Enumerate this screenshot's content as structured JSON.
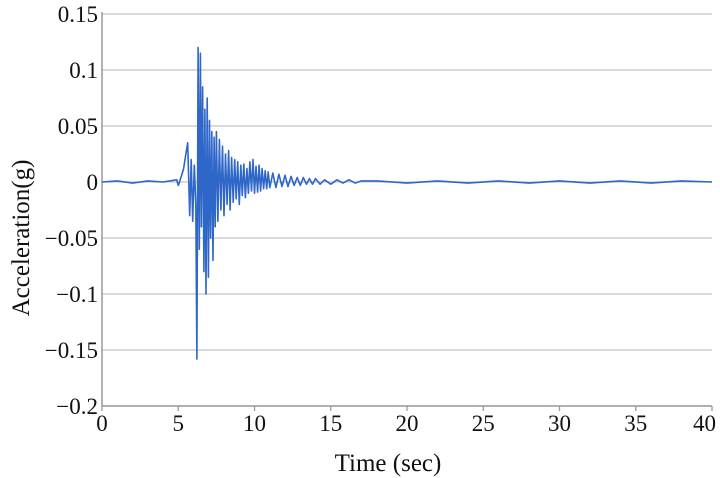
{
  "chart_data": {
    "type": "line",
    "title": "",
    "xlabel": "Time (sec)",
    "ylabel": "Acceleration(g)",
    "xlim": [
      0,
      40
    ],
    "ylim": [
      -0.2,
      0.15
    ],
    "x_ticks": [
      {
        "value": 0,
        "label": "0"
      },
      {
        "value": 5,
        "label": "5"
      },
      {
        "value": 10,
        "label": "10"
      },
      {
        "value": 15,
        "label": "15"
      },
      {
        "value": 20,
        "label": "20"
      },
      {
        "value": 25,
        "label": "25"
      },
      {
        "value": 30,
        "label": "30"
      },
      {
        "value": 35,
        "label": "35"
      },
      {
        "value": 40,
        "label": "40"
      }
    ],
    "y_ticks": [
      {
        "value": 0.15,
        "label": "0.15"
      },
      {
        "value": 0.1,
        "label": "0.1"
      },
      {
        "value": 0.05,
        "label": "0.05"
      },
      {
        "value": 0,
        "label": "0"
      },
      {
        "value": -0.05,
        "label": "−0.05"
      },
      {
        "value": -0.1,
        "label": "−0.1"
      },
      {
        "value": -0.15,
        "label": "−0.15"
      },
      {
        "value": -0.2,
        "label": "−0.2"
      }
    ],
    "grid": {
      "horizontal": true,
      "vertical": false
    },
    "legend": "none",
    "colors": {
      "line": "#2f67c8",
      "grid": "#c4c4c4",
      "axis": "#9a9a9a"
    },
    "series": [
      {
        "x": [
          0,
          1,
          2,
          3,
          4,
          4.9,
          5.0,
          5.2,
          5.35,
          5.5,
          5.62,
          5.75,
          5.85,
          5.95,
          6.05,
          6.15,
          6.22,
          6.3,
          6.38,
          6.45,
          6.52,
          6.6,
          6.68,
          6.75,
          6.82,
          6.9,
          6.98,
          7.05,
          7.12,
          7.2,
          7.28,
          7.35,
          7.42,
          7.5,
          7.6,
          7.7,
          7.8,
          7.9,
          8.0,
          8.1,
          8.2,
          8.3,
          8.4,
          8.5,
          8.6,
          8.7,
          8.8,
          8.9,
          9.0,
          9.1,
          9.2,
          9.3,
          9.4,
          9.5,
          9.6,
          9.7,
          9.8,
          9.9,
          10.0,
          10.1,
          10.2,
          10.3,
          10.4,
          10.5,
          10.6,
          10.7,
          10.8,
          10.9,
          11.0,
          11.2,
          11.4,
          11.6,
          11.8,
          12.0,
          12.2,
          12.4,
          12.6,
          12.8,
          13.0,
          13.2,
          13.4,
          13.6,
          13.8,
          14.0,
          14.3,
          14.6,
          15.0,
          15.4,
          15.8,
          16.2,
          16.6,
          17.0,
          18,
          20,
          22,
          24,
          26,
          28,
          30,
          32,
          34,
          36,
          38,
          40
        ],
        "y": [
          0,
          0.001,
          -0.001,
          0.001,
          0,
          0.002,
          -0.003,
          0.005,
          0.012,
          0.025,
          0.035,
          -0.03,
          0.02,
          -0.035,
          0.015,
          -0.02,
          -0.158,
          0.12,
          -0.06,
          0.115,
          -0.04,
          0.085,
          -0.08,
          0.065,
          -0.1,
          0.075,
          -0.085,
          0.055,
          -0.05,
          0.045,
          -0.07,
          0.04,
          -0.04,
          0.045,
          -0.035,
          0.038,
          -0.025,
          0.032,
          -0.03,
          0.025,
          -0.02,
          0.028,
          -0.025,
          0.022,
          -0.018,
          0.02,
          -0.015,
          0.018,
          -0.02,
          0.015,
          -0.012,
          0.016,
          -0.014,
          0.012,
          -0.01,
          0.018,
          -0.008,
          0.02,
          -0.01,
          0.014,
          -0.009,
          0.015,
          -0.008,
          0.012,
          -0.006,
          0.01,
          -0.006,
          0.009,
          -0.005,
          0.008,
          -0.005,
          0.007,
          -0.004,
          0.006,
          -0.004,
          0.005,
          -0.003,
          0.004,
          -0.003,
          0.004,
          -0.002,
          0.003,
          -0.002,
          0.003,
          -0.002,
          0.002,
          -0.002,
          0.002,
          -0.001,
          0.002,
          -0.001,
          0.001,
          0.001,
          -0.001,
          0.001,
          -0.001,
          0.001,
          -0.001,
          0.001,
          -0.001,
          0.001,
          -0.001,
          0.001,
          0
        ]
      }
    ]
  }
}
